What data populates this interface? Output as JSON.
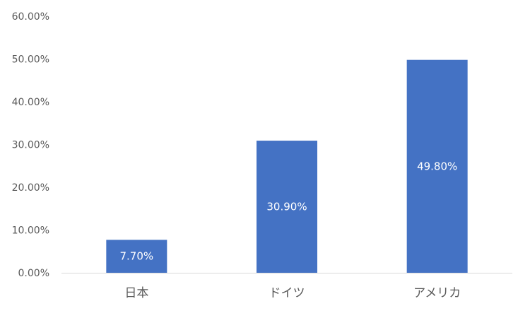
{
  "chart_data": {
    "type": "bar",
    "title": "",
    "xlabel": "",
    "ylabel": "",
    "categories": [
      "日本",
      "ドイツ",
      "アメリカ"
    ],
    "values": [
      7.7,
      30.9,
      49.8
    ],
    "data_labels": [
      "7.70%",
      "30.90%",
      "49.80%"
    ],
    "ylim": [
      0,
      60
    ],
    "y_ticks": [
      0,
      10,
      20,
      30,
      40,
      50,
      60
    ],
    "y_tick_labels": [
      "0.00%",
      "10.00%",
      "20.00%",
      "30.00%",
      "40.00%",
      "50.00%",
      "60.00%"
    ],
    "grid": false,
    "legend": "none",
    "colors": {
      "bar": "#4472C4",
      "axis": "#D9D9D9",
      "label": "#595959",
      "data_label": "#FFFFFF"
    }
  }
}
